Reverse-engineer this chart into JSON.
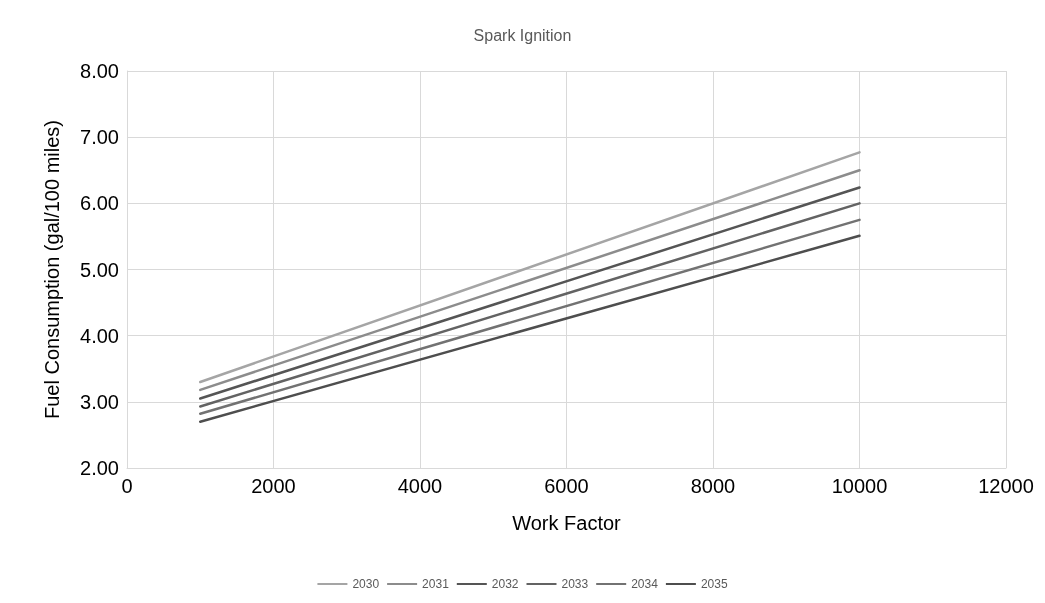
{
  "chart_data": {
    "type": "line",
    "title": "Spark Ignition",
    "xlabel": "Work Factor",
    "ylabel": "Fuel Consumption (gal/100 miles)",
    "x": [
      1000,
      10000
    ],
    "series": [
      {
        "name": "2030",
        "color": "#a5a5a5",
        "values": [
          3.3,
          6.77
        ]
      },
      {
        "name": "2031",
        "color": "#8c8c8c",
        "values": [
          3.18,
          6.5
        ]
      },
      {
        "name": "2032",
        "color": "#555555",
        "values": [
          3.05,
          6.24
        ]
      },
      {
        "name": "2033",
        "color": "#636363",
        "values": [
          2.93,
          6.0
        ]
      },
      {
        "name": "2034",
        "color": "#727272",
        "values": [
          2.82,
          5.75
        ]
      },
      {
        "name": "2035",
        "color": "#4e4e4e",
        "values": [
          2.7,
          5.51
        ]
      }
    ],
    "xlim": [
      0,
      12000
    ],
    "xticks": [
      0,
      2000,
      4000,
      6000,
      8000,
      10000,
      12000
    ],
    "ylim": [
      2,
      8
    ],
    "yticks": [
      {
        "value": 2,
        "label": "2.00"
      },
      {
        "value": 3,
        "label": "3.00"
      },
      {
        "value": 4,
        "label": "4.00"
      },
      {
        "value": 5,
        "label": "5.00"
      },
      {
        "value": 6,
        "label": "6.00"
      },
      {
        "value": 7,
        "label": "7.00"
      },
      {
        "value": 8,
        "label": "8.00"
      }
    ],
    "grid": true,
    "legend": "bottom",
    "marker": "none",
    "line_style": "solid"
  }
}
